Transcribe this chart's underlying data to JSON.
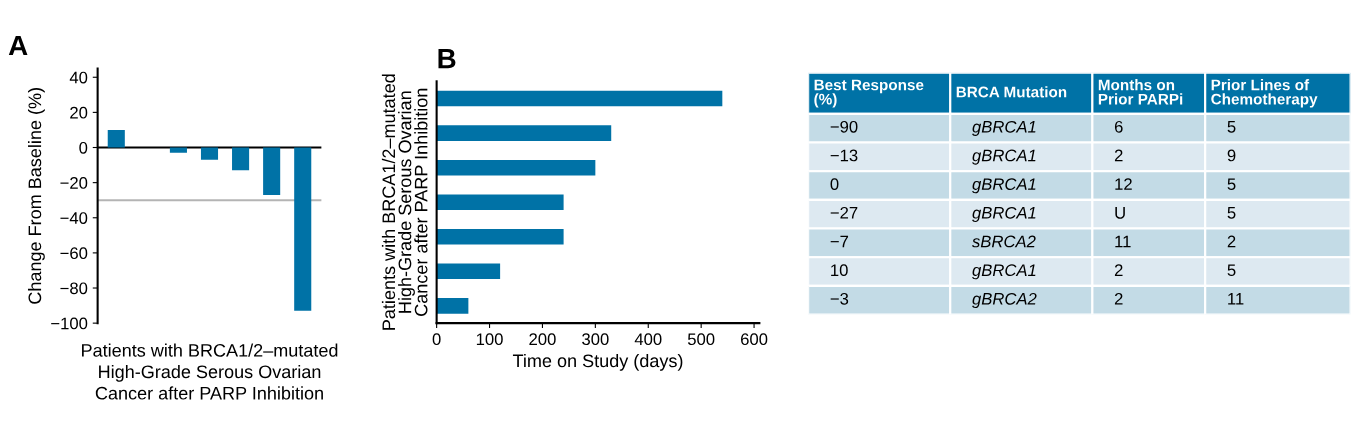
{
  "chart_data": [
    {
      "type": "bar",
      "title": "A",
      "ylabel": "Change From Baseline (%)",
      "xlabel": "Patients with BRCA1/2–mutated\nHigh-Grade Serous Ovarian\nCancer after PARP Inhibition",
      "categories": [
        null,
        null,
        null,
        null,
        null,
        null,
        null
      ],
      "values": [
        10,
        0,
        -3,
        -7,
        -13,
        -27,
        -93
      ],
      "color": "#0072a6",
      "ylim": [
        -100,
        45
      ],
      "yticks": [
        -100,
        -80,
        -60,
        -40,
        -20,
        0,
        20,
        40
      ],
      "ref_lines": [
        {
          "axis": "y",
          "value": 0,
          "color": "#000000"
        },
        {
          "axis": "y",
          "value": -30,
          "color": "#b4b4b4"
        }
      ],
      "grid": false,
      "legend": false
    },
    {
      "type": "bar",
      "title": "B",
      "orientation": "horizontal",
      "ylabel": "Patients with BRCA1/2–mutated\nHigh-Grade Serous Ovarian\nCancer after PARP Inhibition",
      "xlabel": "Time on Study (days)",
      "categories": [
        null,
        null,
        null,
        null,
        null,
        null,
        null
      ],
      "values": [
        540,
        330,
        300,
        240,
        240,
        120,
        60
      ],
      "color": "#0072a6",
      "xlim": [
        0,
        610
      ],
      "xticks": [
        0,
        100,
        200,
        300,
        400,
        500,
        600
      ],
      "grid": false,
      "legend": false
    },
    {
      "type": "other",
      "categories": [
        "Best Response (%)",
        "BRCA Mutation",
        "Months on Prior PARPi",
        "Prior Lines of Chemotherapy"
      ],
      "cell_labels": [
        [
          "−90",
          "gBRCA1",
          "6",
          "5"
        ],
        [
          "−13",
          "gBRCA1",
          "2",
          "9"
        ],
        [
          "0",
          "gBRCA1",
          "12",
          "5"
        ],
        [
          "−27",
          "gBRCA1",
          "U",
          "5"
        ],
        [
          "−7",
          "sBRCA2",
          "11",
          "2"
        ],
        [
          "10",
          "gBRCA1",
          "2",
          "5"
        ],
        [
          "−3",
          "gBRCA2",
          "2",
          "11"
        ]
      ]
    }
  ]
}
